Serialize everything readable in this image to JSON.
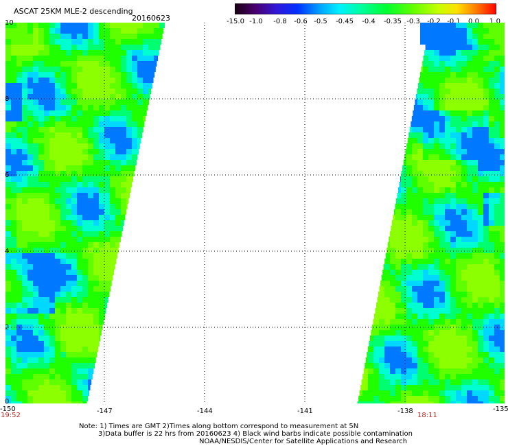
{
  "header": {
    "title": "ASCAT 25KM MLE-2 descending",
    "date": "20160623"
  },
  "colorbar": {
    "labels": [
      "-15.0",
      "-1.0",
      "-0.8",
      "-0.6",
      "-0.5",
      "-0.45",
      "-0.4",
      "-0.35",
      "-0.3",
      "-0.2",
      "-0.1",
      "0.0",
      "1.0"
    ],
    "colors": [
      "#2a0020",
      "#4a0070",
      "#3a18c8",
      "#0030ff",
      "#0098ff",
      "#00e6ff",
      "#00ffb0",
      "#00ff40",
      "#38ff00",
      "#a8ff00",
      "#e8e000",
      "#ff8000",
      "#ff1000"
    ]
  },
  "axes": {
    "x_ticks": [
      "-150",
      "-147",
      "-144",
      "-141",
      "-138",
      "-135"
    ],
    "y_ticks": [
      "10",
      "8",
      "6",
      "4",
      "2",
      "0"
    ]
  },
  "times": {
    "left": "19:52",
    "right": "18:11"
  },
  "notes": [
    "Note: 1) Times are GMT 2)Times along bottom correspond to measurement at 5N",
    "3)Data buffer is 22 hrs from 20160623 4) Black wind barbs indicate possible contamination",
    "NOAA/NESDIS/Center for Satellite Applications and Research"
  ]
}
